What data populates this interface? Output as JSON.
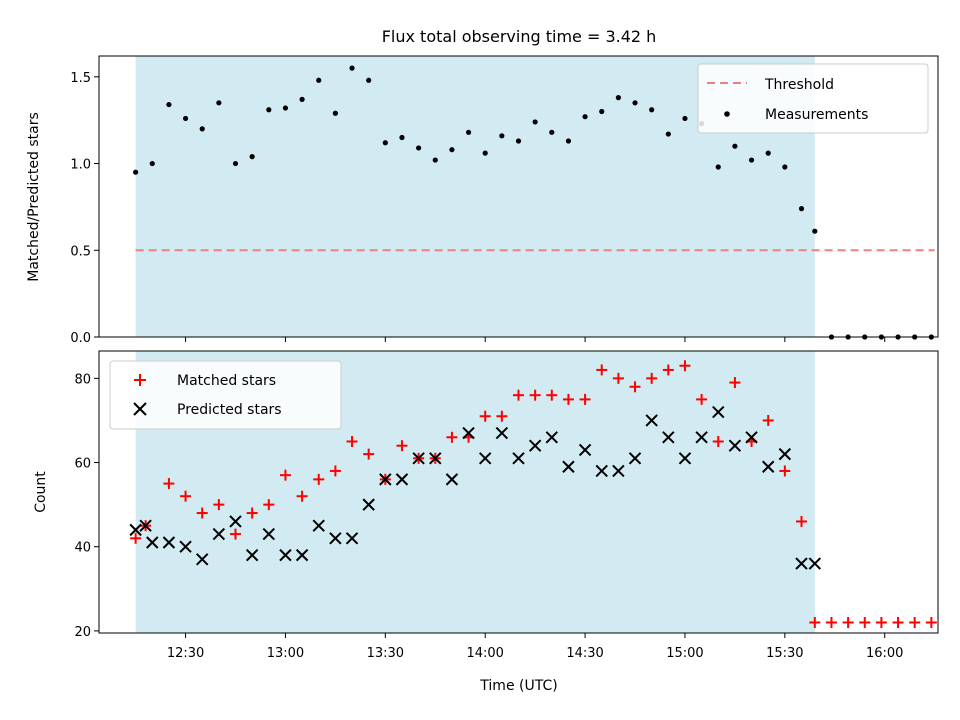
{
  "chart_data": [
    {
      "type": "scatter",
      "title": "Flux total observing time = 3.42 h",
      "ylabel": "Matched/Predicted stars",
      "ylim": [
        0,
        1.62
      ],
      "yticks": [
        0.0,
        0.5,
        1.0,
        1.5
      ],
      "ytick_labels": [
        "0.0",
        "0.5",
        "1.0",
        "1.5"
      ],
      "grid": false,
      "legend_position": "top-right",
      "threshold": {
        "name": "Threshold",
        "value": 0.5,
        "x_start": "12:15",
        "x_end": "16:15",
        "color": "#f08080"
      },
      "observing_window": {
        "start": "12:15",
        "end": "15:39",
        "color": "#add8e6"
      },
      "series": [
        {
          "name": "Measurements",
          "marker": "dot",
          "color": "#000000",
          "x": [
            "12:15",
            "12:20",
            "12:25",
            "12:30",
            "12:35",
            "12:40",
            "12:45",
            "12:50",
            "12:55",
            "13:00",
            "13:05",
            "13:10",
            "13:15",
            "13:20",
            "13:25",
            "13:30",
            "13:35",
            "13:40",
            "13:45",
            "13:50",
            "13:55",
            "14:00",
            "14:05",
            "14:10",
            "14:15",
            "14:20",
            "14:25",
            "14:30",
            "14:35",
            "14:40",
            "14:45",
            "14:50",
            "14:55",
            "15:00",
            "15:05",
            "15:10",
            "15:15",
            "15:20",
            "15:25",
            "15:30",
            "15:35",
            "15:39",
            "15:44",
            "15:49",
            "15:54",
            "15:59",
            "16:04",
            "16:09",
            "16:14"
          ],
          "y": [
            0.95,
            1.0,
            1.34,
            1.26,
            1.2,
            1.35,
            1.0,
            1.04,
            1.31,
            1.32,
            1.37,
            1.48,
            1.29,
            1.55,
            1.48,
            1.12,
            1.15,
            1.09,
            1.02,
            1.08,
            1.18,
            1.06,
            1.16,
            1.13,
            1.24,
            1.18,
            1.13,
            1.27,
            1.3,
            1.38,
            1.35,
            1.31,
            1.17,
            1.26,
            1.23,
            0.98,
            1.1,
            1.02,
            1.06,
            0.98,
            0.74,
            0.61,
            0.0,
            0.0,
            0.0,
            0.0,
            0.0,
            0.0,
            0.0
          ]
        }
      ]
    },
    {
      "type": "scatter",
      "xlabel": "Time (UTC)",
      "ylabel": "Count",
      "ylim": [
        19.5,
        86.5
      ],
      "yticks": [
        20,
        40,
        60,
        80
      ],
      "ytick_labels": [
        "20",
        "40",
        "60",
        "80"
      ],
      "xlim": [
        "12:04",
        "16:16"
      ],
      "xticks": [
        "12:30",
        "13:00",
        "13:30",
        "14:00",
        "14:30",
        "15:00",
        "15:30",
        "16:00"
      ],
      "grid": false,
      "legend_position": "top-left",
      "observing_window": {
        "start": "12:15",
        "end": "15:39",
        "color": "#add8e6"
      },
      "series": [
        {
          "name": "Matched stars",
          "marker": "plus",
          "color": "#ff0000",
          "x": [
            "12:15",
            "12:18",
            "12:25",
            "12:30",
            "12:35",
            "12:40",
            "12:45",
            "12:50",
            "12:55",
            "13:00",
            "13:05",
            "13:10",
            "13:15",
            "13:20",
            "13:25",
            "13:30",
            "13:35",
            "13:40",
            "13:45",
            "13:50",
            "13:55",
            "14:00",
            "14:05",
            "14:10",
            "14:15",
            "14:20",
            "14:25",
            "14:30",
            "14:35",
            "14:40",
            "14:45",
            "14:50",
            "14:55",
            "15:00",
            "15:05",
            "15:10",
            "15:15",
            "15:20",
            "15:25",
            "15:30",
            "15:35",
            "15:39",
            "15:44",
            "15:49",
            "15:54",
            "15:59",
            "16:04",
            "16:09",
            "16:14"
          ],
          "y": [
            42,
            45,
            55,
            52,
            48,
            50,
            43,
            48,
            50,
            57,
            52,
            56,
            58,
            65,
            62,
            56,
            64,
            61,
            61,
            66,
            66,
            71,
            71,
            76,
            76,
            76,
            75,
            75,
            82,
            80,
            78,
            80,
            82,
            83,
            75,
            65,
            79,
            65,
            70,
            58,
            46,
            22,
            22,
            22,
            22,
            22,
            22,
            22,
            22
          ]
        },
        {
          "name": "Predicted stars",
          "marker": "x",
          "color": "#000000",
          "x": [
            "12:15",
            "12:18",
            "12:20",
            "12:25",
            "12:30",
            "12:35",
            "12:40",
            "12:45",
            "12:50",
            "12:55",
            "13:00",
            "13:05",
            "13:10",
            "13:15",
            "13:20",
            "13:25",
            "13:30",
            "13:35",
            "13:40",
            "13:45",
            "13:50",
            "13:55",
            "14:00",
            "14:05",
            "14:10",
            "14:15",
            "14:20",
            "14:25",
            "14:30",
            "14:35",
            "14:40",
            "14:45",
            "14:50",
            "14:55",
            "15:00",
            "15:05",
            "15:10",
            "15:15",
            "15:20",
            "15:25",
            "15:30",
            "15:35",
            "15:39"
          ],
          "y": [
            44,
            45,
            41,
            41,
            40,
            37,
            43,
            46,
            38,
            43,
            38,
            38,
            45,
            42,
            42,
            50,
            56,
            56,
            61,
            61,
            56,
            67,
            61,
            67,
            61,
            64,
            66,
            59,
            63,
            58,
            58,
            61,
            70,
            66,
            61,
            66,
            72,
            64,
            66,
            59,
            62,
            36,
            36
          ]
        }
      ]
    }
  ]
}
